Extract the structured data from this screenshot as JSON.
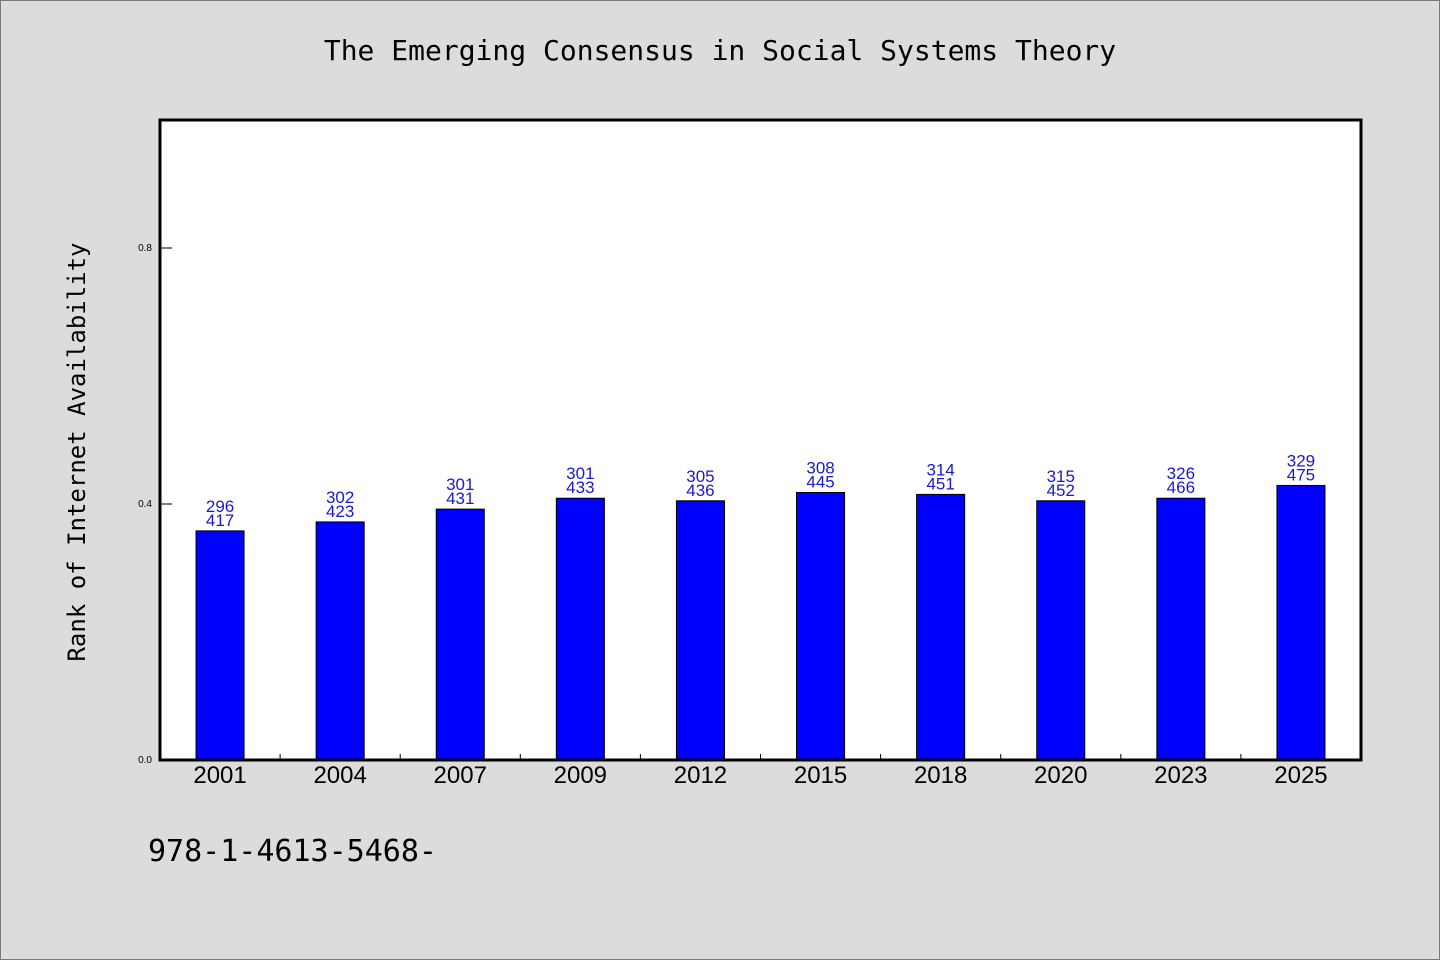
{
  "chart_data": {
    "type": "bar",
    "title": "The Emerging Consensus in Social Systems Theory",
    "xlabel": "",
    "ylabel": "Rank of Internet Availability",
    "categories": [
      "2001",
      "2004",
      "2007",
      "2009",
      "2012",
      "2015",
      "2018",
      "2020",
      "2023",
      "2025"
    ],
    "values": [
      0.358,
      0.372,
      0.392,
      0.409,
      0.405,
      0.418,
      0.415,
      0.405,
      0.409,
      0.429
    ],
    "label_top": [
      "296",
      "302",
      "301",
      "301",
      "305",
      "308",
      "314",
      "315",
      "326",
      "329"
    ],
    "label_bottom": [
      "417",
      "423",
      "431",
      "433",
      "436",
      "445",
      "451",
      "452",
      "466",
      "475"
    ],
    "ylim": [
      0,
      1.0
    ],
    "yticks": [
      0.0,
      0.4,
      0.8
    ],
    "ytick_labels": [
      "0.0",
      "0.4",
      "0.8"
    ],
    "grid": false,
    "bar_color": "#0000ff",
    "label_color": "#1a1acc"
  },
  "footer": {
    "code": "978-1-4613-5468-"
  }
}
